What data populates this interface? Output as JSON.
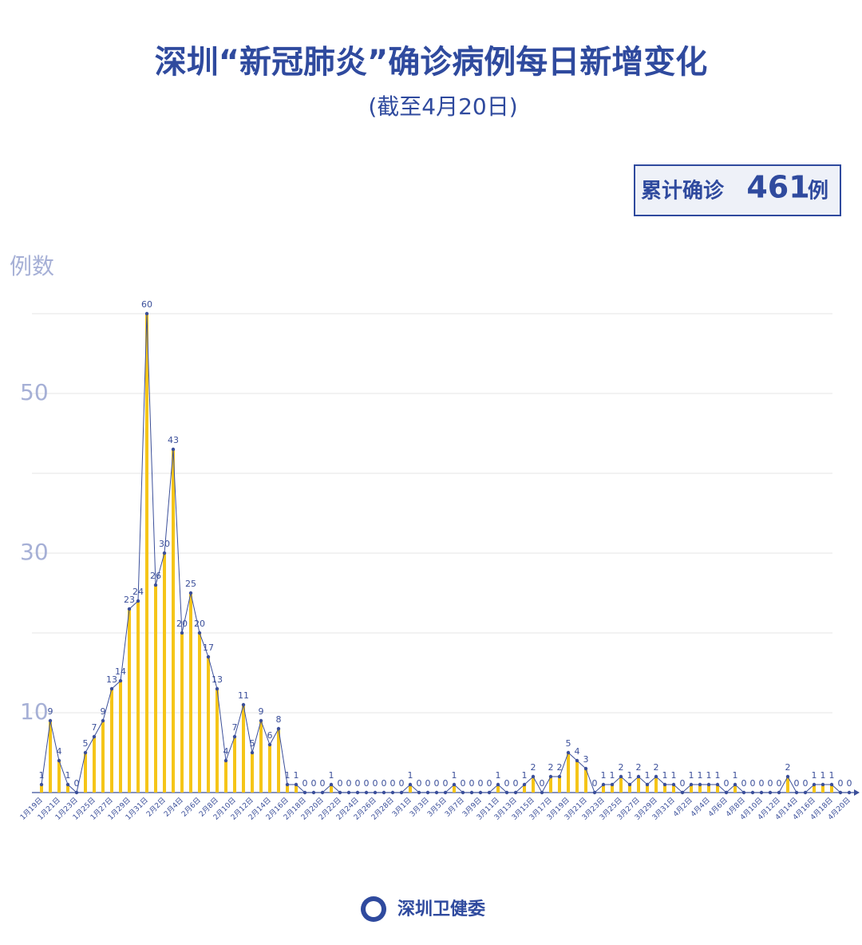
{
  "chart_data": {
    "type": "bar-line",
    "title": "深圳“新冠肺炎”确诊病例每日新增变化",
    "subtitle": "(截至4月20日)",
    "total_prefix": "累计确诊",
    "total": 461,
    "total_unit": "例",
    "y_label": "例数",
    "source": "深圳卫健委",
    "categories": [
      "1月19日",
      null,
      "1月21日",
      null,
      "1月23日",
      null,
      "1月25日",
      null,
      "1月27日",
      null,
      "1月29日",
      null,
      "1月31日",
      null,
      "2月2日",
      null,
      "2月4日",
      null,
      "2月6日",
      null,
      "2月8日",
      null,
      "2月10日",
      null,
      "2月12日",
      null,
      "2月14日",
      null,
      "2月16日",
      null,
      "2月18日",
      null,
      "2月20日",
      null,
      "2月22日",
      null,
      "2月24日",
      null,
      "2月26日",
      null,
      "2月28日",
      null,
      "3月1日",
      null,
      "3月3日",
      null,
      "3月5日",
      null,
      "3月7日",
      null,
      "3月9日",
      null,
      "3月11日",
      null,
      "3月13日",
      null,
      "3月15日",
      null,
      "3月17日",
      null,
      "3月19日",
      null,
      "3月21日",
      null,
      "3月23日",
      null,
      "3月25日",
      null,
      "3月27日",
      null,
      "3月29日",
      null,
      "3月31日",
      null,
      "4月2日",
      null,
      "4月4日",
      null,
      "4月6日",
      null,
      "4月8日",
      null,
      "4月10日",
      null,
      "4月12日",
      null,
      "4月14日",
      null,
      "4月16日",
      null,
      "4月18日",
      null,
      "4月20日"
    ],
    "values": [
      1,
      9,
      4,
      1,
      0,
      5,
      7,
      9,
      13,
      14,
      23,
      24,
      60,
      26,
      30,
      43,
      20,
      25,
      20,
      17,
      13,
      4,
      7,
      11,
      5,
      9,
      6,
      8,
      1,
      1,
      0,
      0,
      0,
      1,
      0,
      0,
      0,
      0,
      0,
      0,
      0,
      0,
      1,
      0,
      0,
      0,
      0,
      1,
      0,
      0,
      0,
      0,
      1,
      0,
      0,
      1,
      2,
      0,
      2,
      2,
      5,
      4,
      3,
      0,
      1,
      1,
      2,
      1,
      2,
      1,
      2,
      1,
      1,
      0,
      1,
      1,
      1,
      1,
      0,
      1,
      0,
      0,
      0,
      0,
      0,
      2,
      0,
      0,
      1,
      1,
      1,
      0,
      0
    ],
    "bar_color": "#f5c518",
    "line_color": "#3b4f9a",
    "ylim": [
      0,
      60
    ],
    "yticks": [
      10,
      30,
      50
    ],
    "grid_lines": [
      10,
      20,
      30,
      40,
      50,
      60
    ],
    "grid": true
  }
}
